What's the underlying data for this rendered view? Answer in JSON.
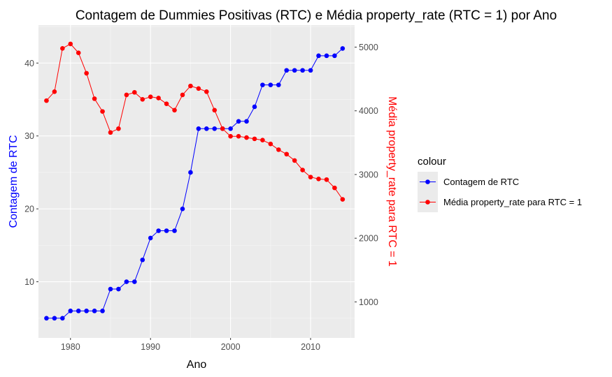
{
  "chart_data": {
    "type": "line",
    "title": "Contagem de Dummies Positivas (RTC) e Média property_rate (RTC = 1) por Ano",
    "xlabel": "Ano",
    "ylabel": "Contagem de RTC",
    "y2label": "Média property_rate para RTC = 1",
    "xlim": [
      1976,
      2015.5
    ],
    "ylim": [
      2.3,
      45.2
    ],
    "y2lim": [
      435,
      5345
    ],
    "x_ticks": [
      1980,
      1990,
      2000,
      2010
    ],
    "y_ticks": [
      10,
      20,
      30,
      40
    ],
    "y2_ticks": [
      1000,
      2000,
      3000,
      4000,
      5000
    ],
    "grid": true,
    "legend": {
      "title": "colour",
      "position": "right"
    },
    "x": [
      1977,
      1978,
      1979,
      1980,
      1981,
      1982,
      1983,
      1984,
      1985,
      1986,
      1987,
      1988,
      1989,
      1990,
      1991,
      1992,
      1993,
      1994,
      1995,
      1996,
      1997,
      1998,
      1999,
      2000,
      2001,
      2002,
      2003,
      2004,
      2005,
      2006,
      2007,
      2008,
      2009,
      2010,
      2011,
      2012,
      2013,
      2014
    ],
    "series": [
      {
        "name": "Contagem de RTC",
        "color": "#0000ff",
        "axis": "left",
        "values": [
          5,
          5,
          5,
          6,
          6,
          6,
          6,
          6,
          9,
          9,
          10,
          10,
          13,
          16,
          17,
          17,
          17,
          20,
          25,
          31,
          31,
          31,
          31,
          31,
          32,
          32,
          34,
          37,
          37,
          37,
          39,
          39,
          39,
          39,
          41,
          41,
          41,
          42
        ]
      },
      {
        "name": "Média property_rate para RTC = 1",
        "color": "#ff0000",
        "axis": "right",
        "values": [
          4160,
          4300,
          4980,
          5050,
          4910,
          4590,
          4190,
          3990,
          3660,
          3720,
          4250,
          4290,
          4180,
          4220,
          4200,
          4110,
          4010,
          4250,
          4390,
          4350,
          4300,
          4010,
          3720,
          3600,
          3600,
          3580,
          3560,
          3540,
          3480,
          3390,
          3320,
          3220,
          3070,
          2960,
          2930,
          2920,
          2790,
          2610
        ]
      }
    ]
  }
}
